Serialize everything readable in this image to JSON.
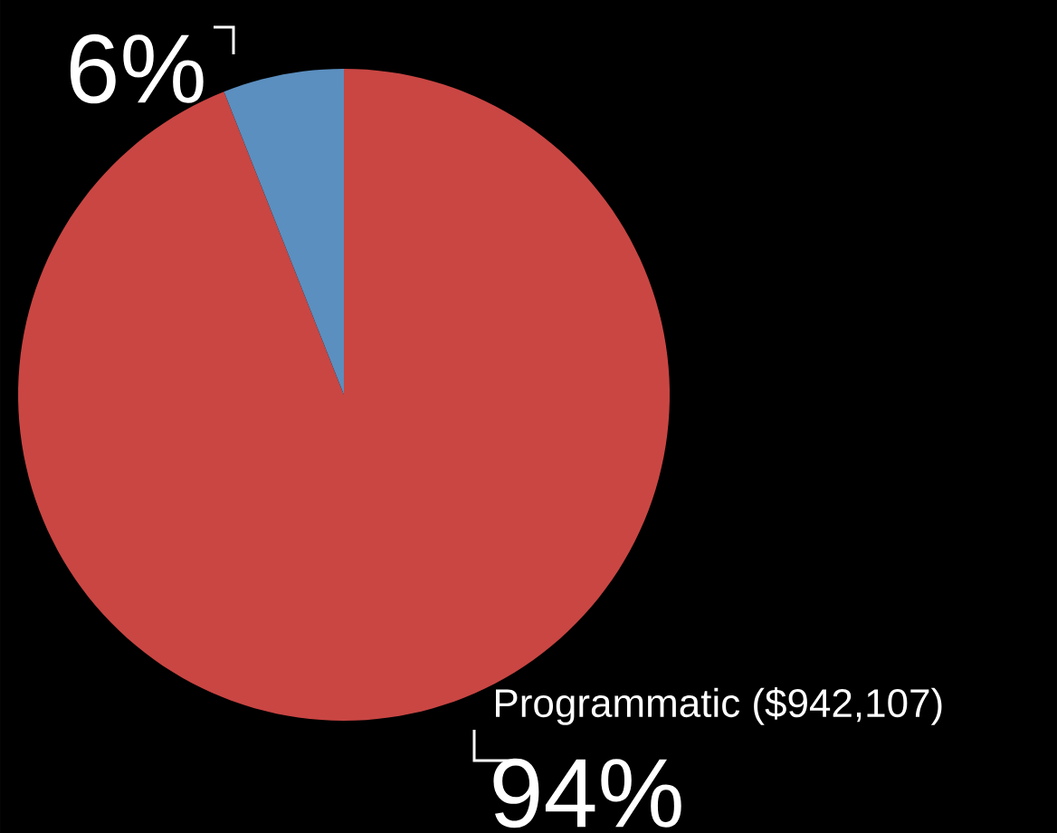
{
  "chart_data": {
    "type": "pie",
    "categories": [
      "Programmatic ($942,107)",
      null
    ],
    "values": [
      94,
      6
    ],
    "colors": [
      "#c94643",
      "#5b8fbf"
    ],
    "value_labels": [
      "94%",
      "6%"
    ]
  }
}
